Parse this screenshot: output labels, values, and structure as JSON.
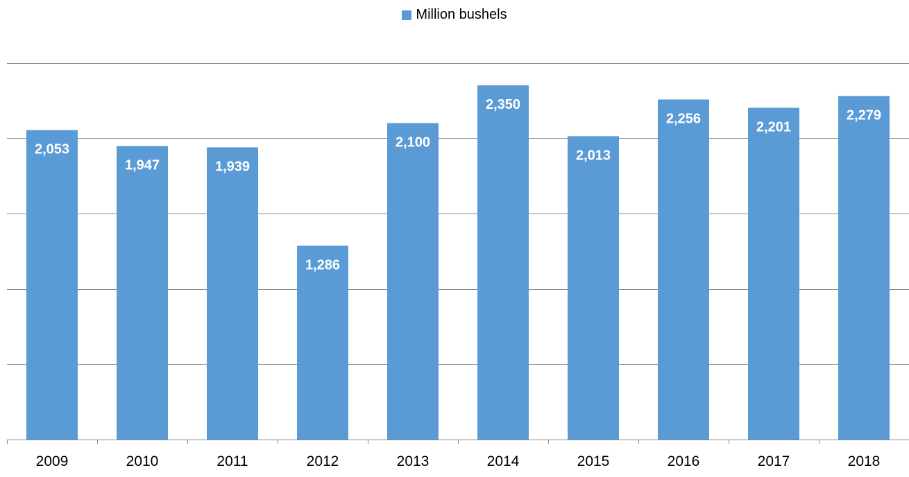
{
  "chart_data": {
    "type": "bar",
    "categories": [
      "2009",
      "2010",
      "2011",
      "2012",
      "2013",
      "2014",
      "2015",
      "2016",
      "2017",
      "2018"
    ],
    "series": [
      {
        "name": "Million bushels",
        "values": [
          2053,
          1947,
          1939,
          1286,
          2100,
          2350,
          2013,
          2256,
          2201,
          2279
        ],
        "value_labels": [
          "2,053",
          "1,947",
          "1,939",
          "1,286",
          "2,100",
          "2,350",
          "2,013",
          "2,256",
          "2,201",
          "2,279"
        ]
      }
    ],
    "title": "",
    "xlabel": "",
    "ylabel": "",
    "ylim": [
      0,
      2500
    ],
    "y_grid_step": 500,
    "grid": true,
    "y_tick_labels_visible": false,
    "legend_position": "top-center",
    "colors": {
      "bar": "#5b9bd5",
      "data_label": "#ffffff",
      "gridline": "#868686",
      "axis": "#868686",
      "tick_label": "#000000"
    }
  }
}
